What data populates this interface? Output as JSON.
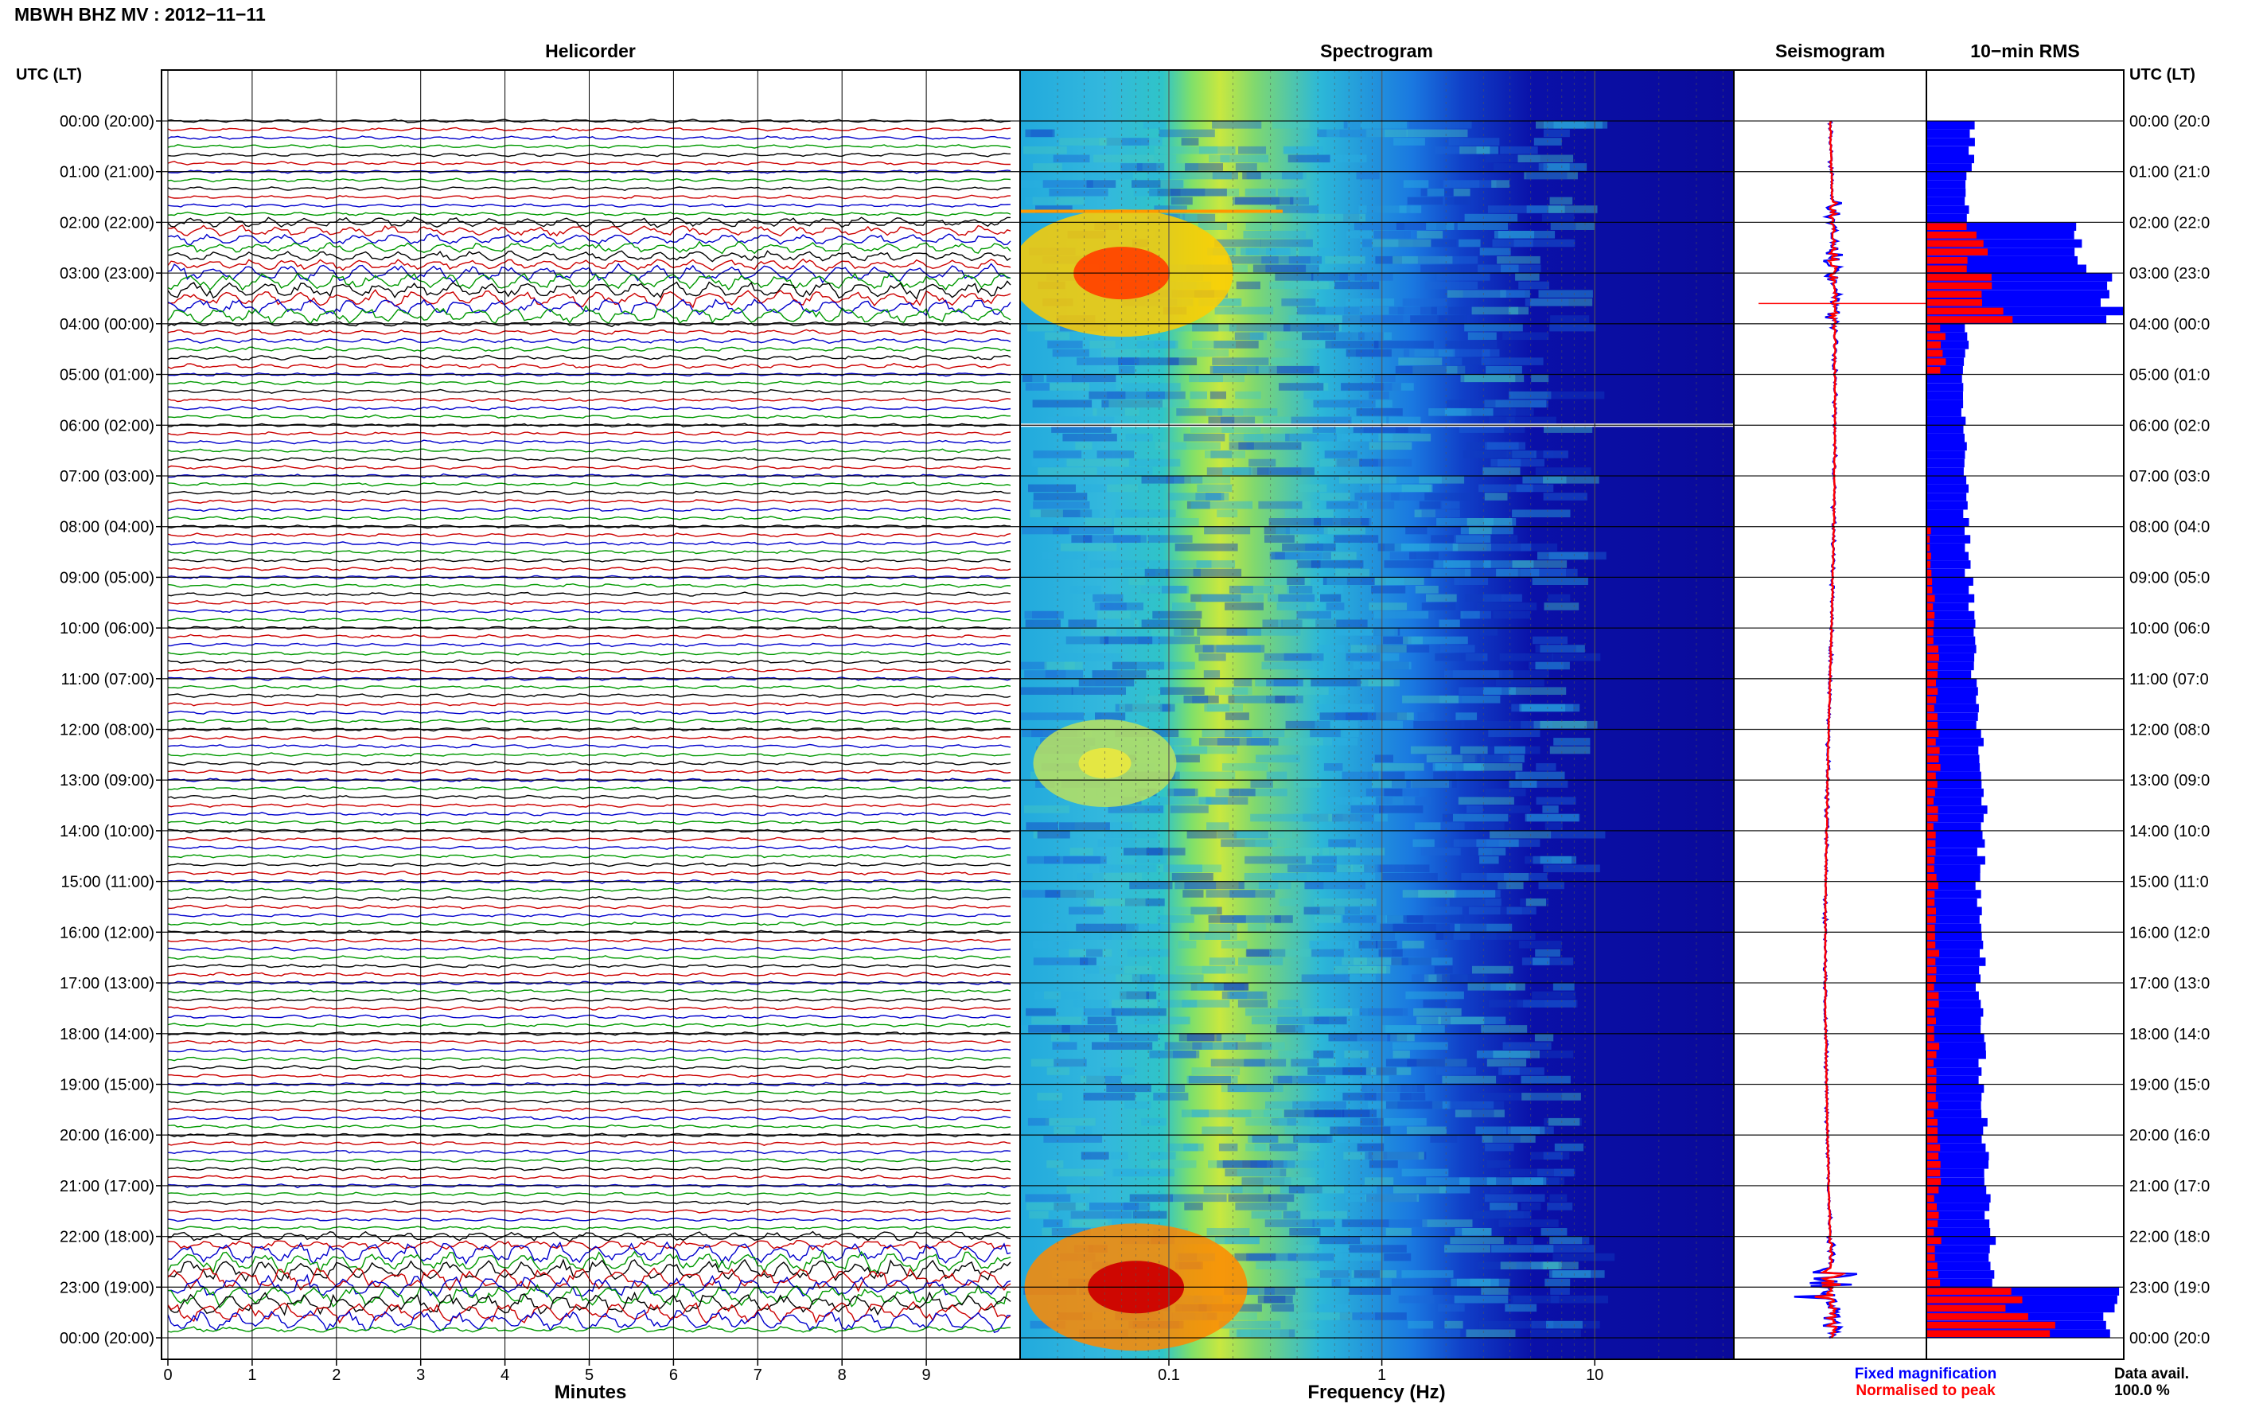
{
  "page_title": "MBWH BHZ MV : 2012−11−11",
  "time_axis_label": "UTC (LT)",
  "time_labels": [
    "00:00 (20:00)",
    "01:00 (21:00)",
    "02:00 (22:00)",
    "03:00 (23:00)",
    "04:00 (00:00)",
    "05:00 (01:00)",
    "06:00 (02:00)",
    "07:00 (03:00)",
    "08:00 (04:00)",
    "09:00 (05:00)",
    "10:00 (06:00)",
    "11:00 (07:00)",
    "12:00 (08:00)",
    "13:00 (09:00)",
    "14:00 (10:00)",
    "15:00 (11:00)",
    "16:00 (12:00)",
    "17:00 (13:00)",
    "18:00 (14:00)",
    "19:00 (15:00)",
    "20:00 (16:00)",
    "21:00 (17:00)",
    "22:00 (18:00)",
    "23:00 (19:00)",
    "00:00 (20:00)"
  ],
  "right_time_labels": [
    "00:00 (20:0",
    "01:00 (21:0",
    "02:00 (22:0",
    "03:00 (23:0",
    "04:00 (00:0",
    "05:00 (01:0",
    "06:00 (02:0",
    "07:00 (03:0",
    "08:00 (04:0",
    "09:00 (05:0",
    "10:00 (06:0",
    "11:00 (07:0",
    "12:00 (08:0",
    "13:00 (09:0",
    "14:00 (10:0",
    "15:00 (11:0",
    "16:00 (12:0",
    "17:00 (13:0",
    "18:00 (14:0",
    "19:00 (15:0",
    "20:00 (16:0",
    "21:00 (17:0",
    "22:00 (18:0",
    "23:00 (19:0",
    "00:00 (20:0"
  ],
  "panels": {
    "helicorder": {
      "title": "Helicorder",
      "xlabel": "Minutes",
      "ticks": [
        "0",
        "1",
        "2",
        "3",
        "4",
        "5",
        "6",
        "7",
        "8",
        "9"
      ]
    },
    "spectrogram": {
      "title": "Spectrogram",
      "xlabel": "Frequency (Hz)",
      "ticks": [
        "0.1",
        "1",
        "10"
      ]
    },
    "seismogram": {
      "title": "Seismogram"
    },
    "rms": {
      "title": "10−min RMS"
    }
  },
  "legend": {
    "fixed": "Fixed magnification",
    "normalised": "Normalised to peak",
    "fixed_color": "#0000ff",
    "normalised_color": "#ff0000"
  },
  "data_avail": {
    "label": "Data avail.",
    "value": "100.0 %"
  },
  "colors": {
    "trace_cycle": [
      "#000000",
      "#cc0000",
      "#0000cc",
      "#009900"
    ]
  },
  "chart_data": [
    {
      "type": "line",
      "panel": "helicorder",
      "x_unit": "minutes",
      "xlim": [
        0,
        10
      ],
      "rows_per_hour": 6,
      "hours": 24,
      "relative_amplitude_by_hour": [
        1,
        1,
        3.2,
        5,
        1.4,
        1,
        1,
        1,
        1,
        1,
        1,
        1,
        1,
        1,
        1,
        1,
        1,
        1,
        1,
        1,
        1,
        1,
        3,
        7
      ]
    },
    {
      "type": "heatmap",
      "panel": "spectrogram",
      "x_scale": "log",
      "xlim": [
        0.02,
        45
      ],
      "x_unit": "Hz",
      "hot_spots": [
        {
          "time_utc": "03:00",
          "frequency_hz": 0.06,
          "level": "high"
        },
        {
          "time_utc": "23:00",
          "frequency_hz": 0.07,
          "level": "very high"
        },
        {
          "time_utc": "12:40",
          "frequency_hz": 0.05,
          "level": "medium"
        }
      ]
    },
    {
      "type": "bar",
      "panel": "rms",
      "orientation": "horizontal",
      "interval_minutes": 10,
      "fixed_blue_by_hour": [
        0.23,
        0.2,
        0.8,
        0.95,
        0.2,
        0.19,
        0.19,
        0.2,
        0.21,
        0.23,
        0.24,
        0.26,
        0.28,
        0.3,
        0.28,
        0.27,
        0.28,
        0.27,
        0.28,
        0.29,
        0.3,
        0.31,
        0.33,
        0.95
      ],
      "normalised_red_by_hour": [
        0,
        0,
        0.25,
        0.35,
        0.08,
        0,
        0,
        0,
        0.02,
        0.04,
        0.05,
        0.05,
        0.06,
        0.05,
        0.05,
        0.05,
        0.05,
        0.05,
        0.05,
        0.05,
        0.06,
        0.05,
        0.06,
        0.55
      ]
    }
  ]
}
